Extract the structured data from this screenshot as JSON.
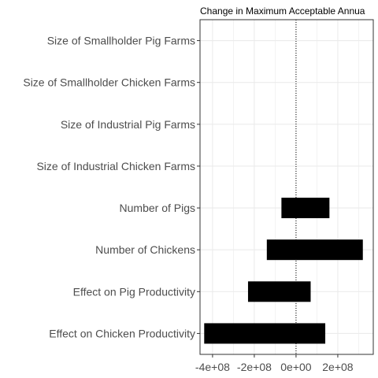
{
  "chart_data": {
    "type": "bar",
    "orientation": "horizontal",
    "title": "Change in Maximum Acceptable Annua",
    "xlabel": "",
    "ylabel": "",
    "categories": [
      "Size of Smallholder Pig Farms",
      "Size of Smallholder Chicken Farms",
      "Size of Industrial Pig Farms",
      "Size of Industrial Chicken Farms",
      "Number of Pigs",
      "Number of Chickens",
      "Effect on Pig Productivity",
      "Effect on Chicken Productivity"
    ],
    "ranges": [
      [
        0,
        0
      ],
      [
        0,
        0
      ],
      [
        0,
        0
      ],
      [
        0,
        0
      ],
      [
        -70000000,
        160000000
      ],
      [
        -140000000,
        320000000
      ],
      [
        -230000000,
        70000000
      ],
      [
        -440000000,
        140000000
      ]
    ],
    "xlim": [
      -460000000,
      370000000
    ],
    "x_ticks": [
      -400000000,
      -200000000,
      0,
      200000000
    ],
    "x_tick_labels": [
      "-4e+08",
      "-2e+08",
      "0e+00",
      "2e+08"
    ],
    "reference_line": 0,
    "grid": true,
    "colors": {
      "bar": "#000000",
      "grid": "#ebebeb",
      "axis_text": "#4d4d4d",
      "panel_border": "#333333"
    }
  }
}
